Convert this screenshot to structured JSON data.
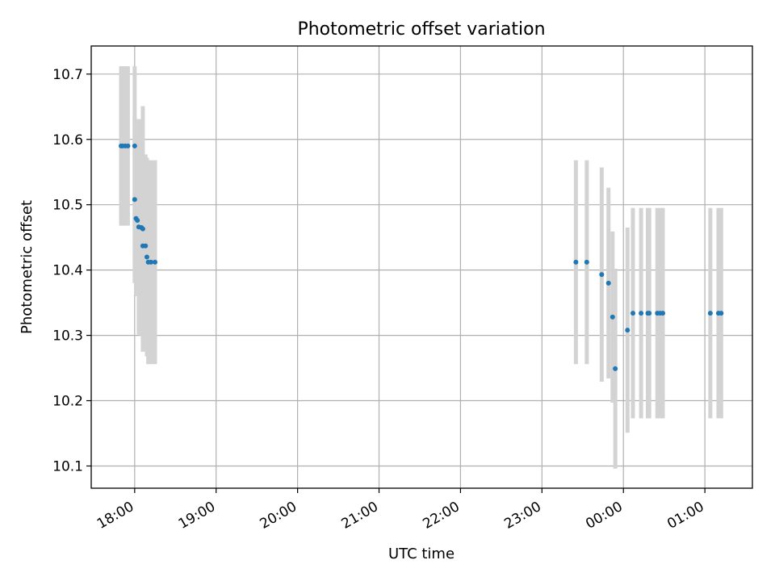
{
  "chart_data": {
    "type": "scatter",
    "title": "Photometric offset variation",
    "xlabel": "UTC time",
    "ylabel": "Photometric offset",
    "x_tick_labels": [
      "18:00",
      "19:00",
      "20:00",
      "21:00",
      "22:00",
      "23:00",
      "00:00",
      "01:00"
    ],
    "x_tick_times": [
      "2024-01-01T18:00",
      "2024-01-01T19:00",
      "2024-01-01T20:00",
      "2024-01-01T21:00",
      "2024-01-01T22:00",
      "2024-01-01T23:00",
      "2024-01-02T00:00",
      "2024-01-02T01:00"
    ],
    "y_tick_labels": [
      "10.1",
      "10.2",
      "10.3",
      "10.4",
      "10.5",
      "10.6",
      "10.7"
    ],
    "y_ticks": [
      10.1,
      10.2,
      10.3,
      10.4,
      10.5,
      10.6,
      10.7
    ],
    "xlim": [
      "2024-01-01T17:28",
      "2024-01-02T01:35"
    ],
    "ylim": [
      10.066,
      10.743
    ],
    "grid": true,
    "colors": {
      "point": "#1f77b4",
      "errorbar": "#d3d3d3",
      "grid": "#b0b0b0"
    },
    "points": [
      {
        "t": "2024-01-01T17:50",
        "y": 10.59,
        "err": 0.122
      },
      {
        "t": "2024-01-01T17:51",
        "y": 10.59,
        "err": 0.122
      },
      {
        "t": "2024-01-01T17:53",
        "y": 10.59,
        "err": 0.122
      },
      {
        "t": "2024-01-01T17:55",
        "y": 10.59,
        "err": 0.122
      },
      {
        "t": "2024-01-01T18:00",
        "y": 10.59,
        "err": 0.122
      },
      {
        "t": "2024-01-01T18:00",
        "y": 10.508,
        "err": 0.128
      },
      {
        "t": "2024-01-01T18:01",
        "y": 10.479,
        "err": 0.117
      },
      {
        "t": "2024-01-01T18:02",
        "y": 10.476,
        "err": 0.116
      },
      {
        "t": "2024-01-01T18:03",
        "y": 10.466,
        "err": 0.165
      },
      {
        "t": "2024-01-01T18:05",
        "y": 10.465,
        "err": 0.165
      },
      {
        "t": "2024-01-01T18:06",
        "y": 10.463,
        "err": 0.188
      },
      {
        "t": "2024-01-01T18:06",
        "y": 10.437,
        "err": 0.14
      },
      {
        "t": "2024-01-01T18:08",
        "y": 10.437,
        "err": 0.14
      },
      {
        "t": "2024-01-01T18:09",
        "y": 10.42,
        "err": 0.152
      },
      {
        "t": "2024-01-01T18:10",
        "y": 10.412,
        "err": 0.156
      },
      {
        "t": "2024-01-01T18:12",
        "y": 10.412,
        "err": 0.156
      },
      {
        "t": "2024-01-01T18:15",
        "y": 10.412,
        "err": 0.156
      },
      {
        "t": "2024-01-01T23:25",
        "y": 10.412,
        "err": 0.156
      },
      {
        "t": "2024-01-01T23:33",
        "y": 10.412,
        "err": 0.156
      },
      {
        "t": "2024-01-01T23:44",
        "y": 10.393,
        "err": 0.164
      },
      {
        "t": "2024-01-01T23:49",
        "y": 10.38,
        "err": 0.146
      },
      {
        "t": "2024-01-01T23:52",
        "y": 10.328,
        "err": 0.131
      },
      {
        "t": "2024-01-01T23:54",
        "y": 10.249,
        "err": 0.153
      },
      {
        "t": "2024-01-02T00:03",
        "y": 10.308,
        "err": 0.157
      },
      {
        "t": "2024-01-02T00:07",
        "y": 10.334,
        "err": 0.161
      },
      {
        "t": "2024-01-02T00:13",
        "y": 10.334,
        "err": 0.161
      },
      {
        "t": "2024-01-02T00:18",
        "y": 10.334,
        "err": 0.161
      },
      {
        "t": "2024-01-02T00:19",
        "y": 10.334,
        "err": 0.161
      },
      {
        "t": "2024-01-02T00:25",
        "y": 10.334,
        "err": 0.161
      },
      {
        "t": "2024-01-02T00:27",
        "y": 10.334,
        "err": 0.161
      },
      {
        "t": "2024-01-02T00:29",
        "y": 10.334,
        "err": 0.161
      },
      {
        "t": "2024-01-02T01:04",
        "y": 10.334,
        "err": 0.161
      },
      {
        "t": "2024-01-02T01:10",
        "y": 10.334,
        "err": 0.161
      },
      {
        "t": "2024-01-02T01:12",
        "y": 10.334,
        "err": 0.161
      }
    ]
  }
}
